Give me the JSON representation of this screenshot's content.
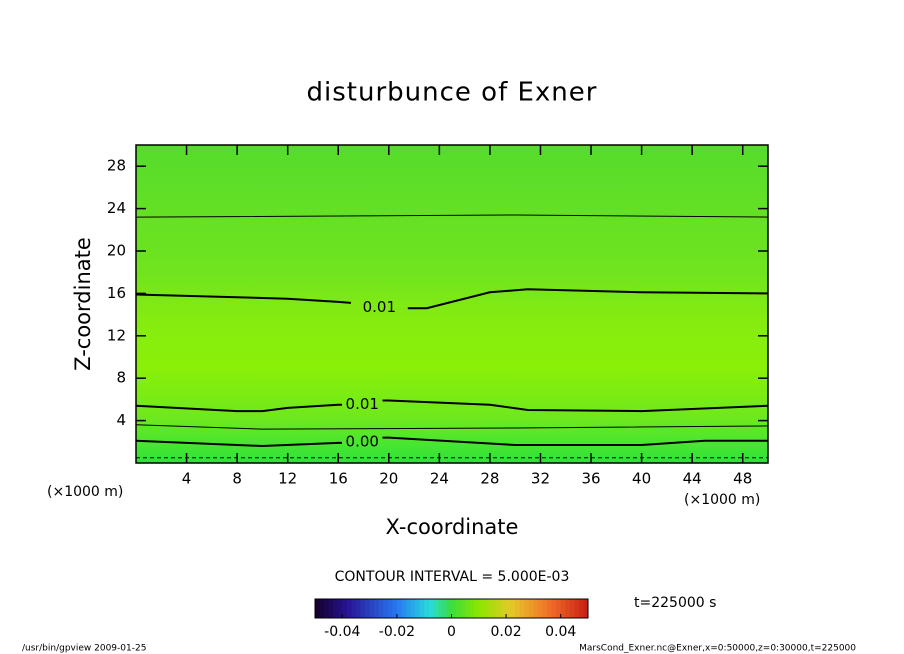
{
  "chart_data": {
    "type": "contour",
    "title": "disturbunce of Exner",
    "xlabel": "X-coordinate",
    "ylabel": "Z-coordinate",
    "x_unit": "(×1000 m)",
    "xlim": [
      0,
      50
    ],
    "ylim": [
      0,
      30
    ],
    "xticks": [
      4,
      8,
      12,
      16,
      20,
      24,
      28,
      32,
      36,
      40,
      44,
      48
    ],
    "yticks": [
      4,
      8,
      12,
      16,
      20,
      24,
      28
    ],
    "contours": [
      {
        "style": "thin",
        "x": [
          0,
          30,
          50
        ],
        "y": [
          23.2,
          23.4,
          23.2
        ]
      },
      {
        "label": "0.01",
        "style": "thick",
        "x": [
          0,
          12,
          16,
          17,
          null,
          21.5,
          23,
          28,
          31,
          40,
          50
        ],
        "y": [
          15.9,
          15.5,
          15.2,
          15.1,
          null,
          14.6,
          14.6,
          16.1,
          16.4,
          16.1,
          16.0
        ]
      },
      {
        "label": "0.01",
        "style": "thick",
        "x": [
          0,
          8,
          10,
          12,
          16,
          16.3,
          null,
          19.5,
          20,
          28,
          31,
          40,
          50
        ],
        "y": [
          5.4,
          4.9,
          4.9,
          5.2,
          5.5,
          5.5,
          null,
          5.9,
          5.9,
          5.5,
          5.0,
          4.9,
          5.4
        ]
      },
      {
        "style": "thin",
        "x": [
          0,
          10,
          30,
          50
        ],
        "y": [
          3.6,
          3.2,
          3.3,
          3.5
        ]
      },
      {
        "label": "0.00",
        "style": "thick",
        "x": [
          0,
          10,
          16,
          16.3,
          null,
          19.5,
          20,
          30,
          40,
          45,
          50
        ],
        "y": [
          2.1,
          1.6,
          1.9,
          1.9,
          null,
          2.4,
          2.4,
          1.7,
          1.7,
          2.1,
          2.1
        ]
      },
      {
        "style": "dashed",
        "x": [
          0,
          50
        ],
        "y": [
          0.5,
          0.5
        ]
      }
    ],
    "contour_interval": "CONTOUR INTERVAL = 5.000E-03",
    "time_label": "t=225000 s",
    "colorbar": {
      "clim": [
        -0.05,
        0.05
      ],
      "ticks": [
        -0.04,
        -0.02,
        0,
        0.02,
        0.04
      ]
    },
    "footer_left": "/usr/bin/gpview   2009-01-25",
    "footer_right": "MarsCond_Exner.nc@Exner,x=0:50000,z=0:30000,t=225000"
  }
}
